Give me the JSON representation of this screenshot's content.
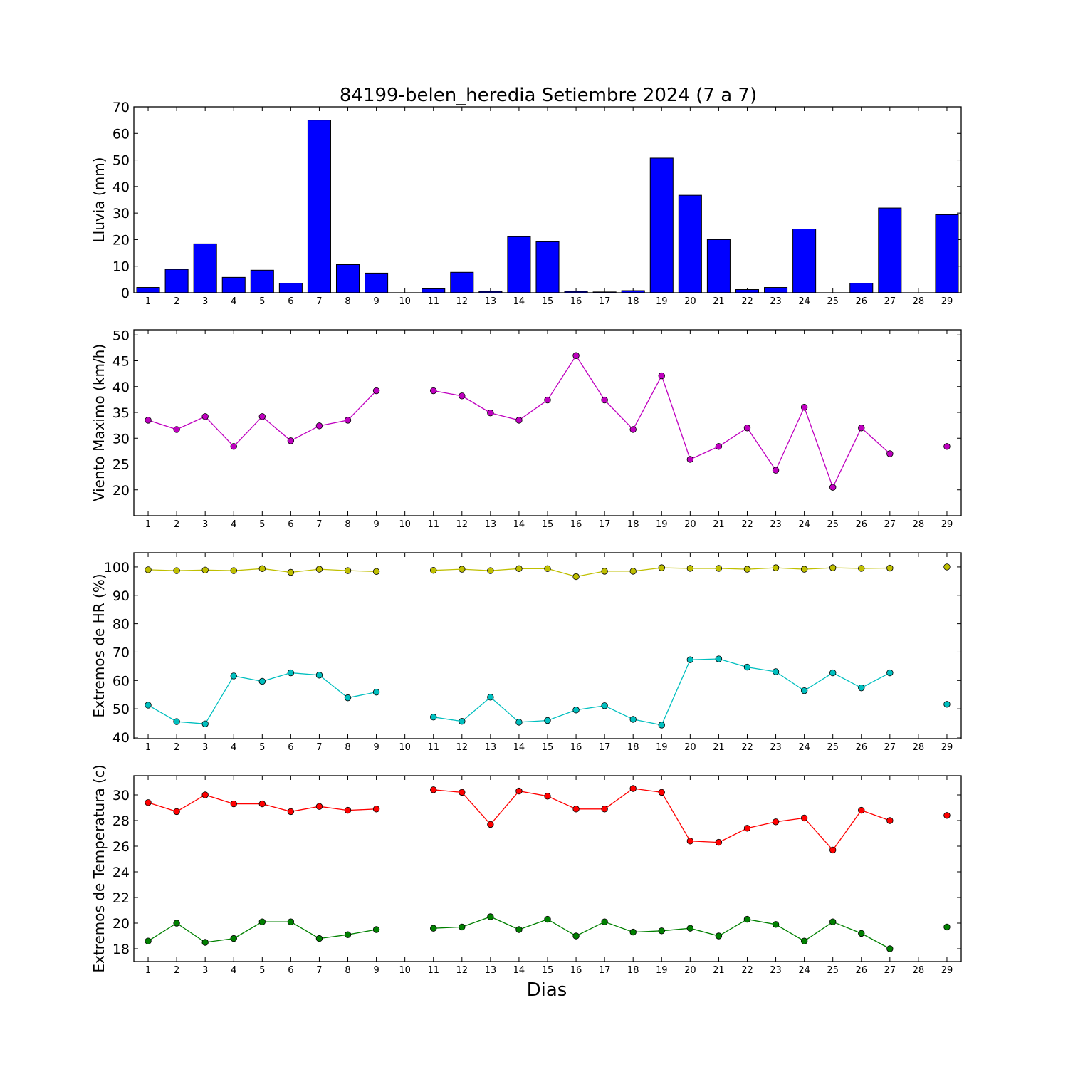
{
  "title": "84199-belen_heredia Setiembre 2024  (7 a 7)",
  "xlabel": "Dias",
  "x_tick_labels": [
    "1",
    "2",
    "3",
    "4",
    "5",
    "6",
    "7",
    "8",
    "9",
    "10",
    "11",
    "12",
    "13",
    "14",
    "15",
    "16",
    "17",
    "18",
    "19",
    "20",
    "21",
    "22",
    "23",
    "24",
    "25",
    "26",
    "27",
    "28",
    "29"
  ],
  "chart_data": [
    {
      "type": "bar",
      "ylabel": "Lluvia (mm)",
      "categories": [
        1,
        2,
        3,
        4,
        5,
        6,
        7,
        8,
        9,
        10,
        11,
        12,
        13,
        14,
        15,
        16,
        17,
        18,
        19,
        20,
        21,
        22,
        23,
        24,
        25,
        26,
        27,
        28,
        29
      ],
      "values": [
        2.0,
        8.8,
        18.4,
        5.8,
        8.5,
        3.6,
        65.0,
        10.6,
        7.4,
        0,
        1.5,
        7.7,
        0.5,
        21.1,
        19.2,
        0.5,
        0.3,
        0.8,
        50.7,
        36.7,
        20.0,
        1.2,
        2.0,
        24.0,
        0,
        3.6,
        31.9,
        null,
        29.4
      ],
      "ylim": [
        0,
        70
      ],
      "yticks": [
        0,
        10,
        20,
        30,
        40,
        50,
        60,
        70
      ],
      "colors": {
        "bar": "#0000ff",
        "edge": "#000000"
      }
    },
    {
      "type": "line",
      "ylabel": "Viento Maximo (km/h)",
      "x": [
        1,
        2,
        3,
        4,
        5,
        6,
        7,
        8,
        9,
        10,
        11,
        12,
        13,
        14,
        15,
        16,
        17,
        18,
        19,
        20,
        21,
        22,
        23,
        24,
        25,
        26,
        27,
        28,
        29
      ],
      "series": [
        {
          "values": [
            33.5,
            31.7,
            34.2,
            28.4,
            34.2,
            29.5,
            32.4,
            33.5,
            39.2,
            null,
            39.2,
            38.2,
            34.9,
            33.5,
            37.4,
            46.0,
            37.4,
            31.7,
            42.1,
            25.9,
            28.4,
            32.0,
            23.8,
            36.0,
            20.5,
            32.0,
            27.0,
            null,
            28.4
          ],
          "color": "#bf00bf"
        }
      ],
      "ylim": [
        15,
        51
      ],
      "yticks": [
        20,
        25,
        30,
        35,
        40,
        45,
        50
      ]
    },
    {
      "type": "line",
      "ylabel": "Extremos de HR (%)",
      "x": [
        1,
        2,
        3,
        4,
        5,
        6,
        7,
        8,
        9,
        10,
        11,
        12,
        13,
        14,
        15,
        16,
        17,
        18,
        19,
        20,
        21,
        22,
        23,
        24,
        25,
        26,
        27,
        28,
        29
      ],
      "series": [
        {
          "values": [
            99.0,
            98.7,
            98.9,
            98.7,
            99.4,
            98.1,
            99.2,
            98.7,
            98.4,
            null,
            98.8,
            99.2,
            98.7,
            99.4,
            99.4,
            96.6,
            98.5,
            98.5,
            99.7,
            99.5,
            99.5,
            99.2,
            99.7,
            99.2,
            99.7,
            99.5,
            99.6,
            null,
            100.0
          ],
          "color": "#bfbf00"
        },
        {
          "values": [
            51.3,
            45.5,
            44.7,
            61.6,
            59.7,
            62.7,
            61.9,
            53.9,
            55.9,
            null,
            47.1,
            45.6,
            54.1,
            45.3,
            45.9,
            49.6,
            51.1,
            46.3,
            44.3,
            67.3,
            67.6,
            64.7,
            63.1,
            56.4,
            62.7,
            57.4,
            62.7,
            null,
            51.6
          ],
          "color": "#00bfbf"
        }
      ],
      "ylim": [
        39.5,
        105
      ],
      "yticks": [
        40,
        50,
        60,
        70,
        80,
        90,
        100
      ]
    },
    {
      "type": "line",
      "ylabel": "Extremos de Temperatura (c)",
      "x": [
        1,
        2,
        3,
        4,
        5,
        6,
        7,
        8,
        9,
        10,
        11,
        12,
        13,
        14,
        15,
        16,
        17,
        18,
        19,
        20,
        21,
        22,
        23,
        24,
        25,
        26,
        27,
        28,
        29
      ],
      "series": [
        {
          "values": [
            29.4,
            28.7,
            30.0,
            29.3,
            29.3,
            28.7,
            29.1,
            28.8,
            28.9,
            null,
            30.4,
            30.2,
            27.7,
            30.3,
            29.9,
            28.9,
            28.9,
            30.5,
            30.2,
            26.4,
            26.3,
            27.4,
            27.9,
            28.2,
            25.7,
            28.8,
            28.0,
            null,
            28.4
          ],
          "color": "#ff0000"
        },
        {
          "values": [
            18.6,
            20.0,
            18.5,
            18.8,
            20.1,
            20.1,
            18.8,
            19.1,
            19.5,
            null,
            19.6,
            19.7,
            20.5,
            19.5,
            20.3,
            19.0,
            20.1,
            19.3,
            19.4,
            19.6,
            19.0,
            20.3,
            19.9,
            18.6,
            20.1,
            19.2,
            18.0,
            null,
            19.7
          ],
          "color": "#008000"
        }
      ],
      "ylim": [
        17,
        31.5
      ],
      "yticks": [
        18,
        20,
        22,
        24,
        26,
        28,
        30
      ]
    }
  ]
}
